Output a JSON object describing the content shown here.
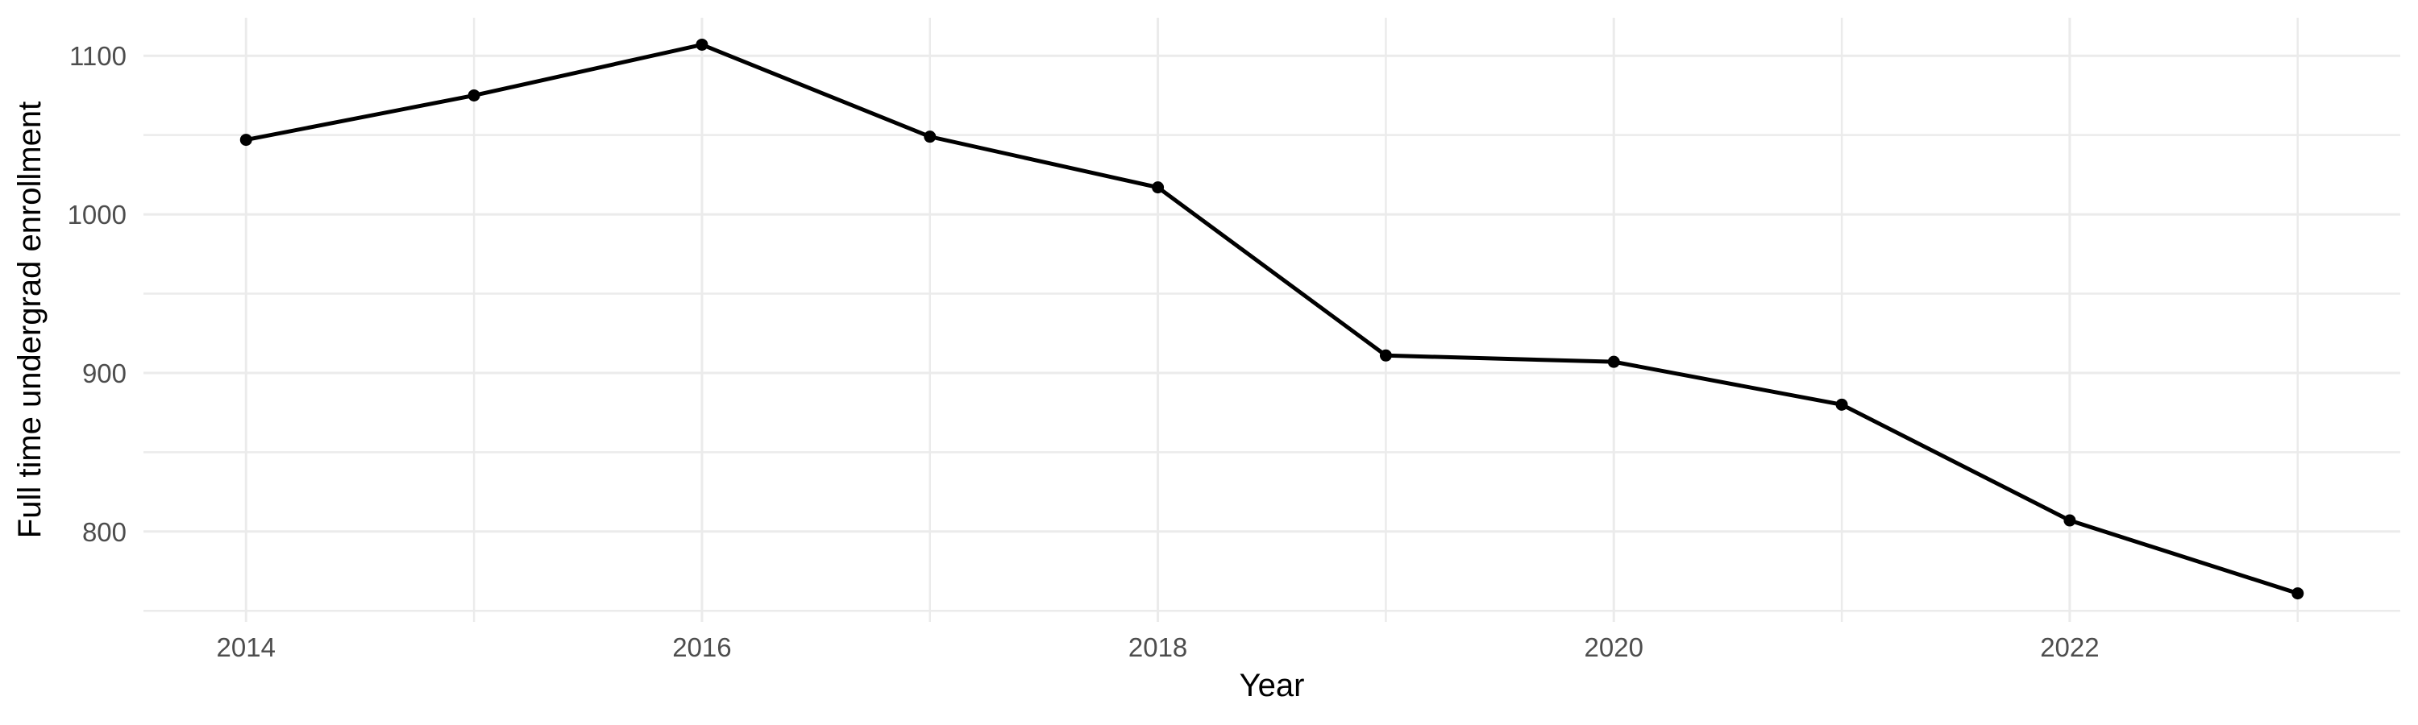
{
  "chart_data": {
    "type": "line",
    "title": "",
    "xlabel": "Year",
    "ylabel": "Full time undergrad enrollment",
    "x": [
      2014,
      2015,
      2016,
      2017,
      2018,
      2019,
      2020,
      2021,
      2022,
      2023
    ],
    "values": [
      1047,
      1075,
      1107,
      1049,
      1017,
      911,
      907,
      880,
      807,
      761
    ],
    "series_name": "Full time undergrad enrollment",
    "x_ticks": [
      2014,
      2016,
      2018,
      2020,
      2022
    ],
    "x_tick_labels": [
      "2014",
      "2016",
      "2018",
      "2020",
      "2022"
    ],
    "x_minor_gridlines": [
      2015,
      2017,
      2019,
      2021,
      2023
    ],
    "y_ticks": [
      800,
      900,
      1000,
      1100
    ],
    "y_tick_labels": [
      "800",
      "900",
      "1000",
      "1100"
    ],
    "y_minor_gridlines": [
      750,
      850,
      950,
      1050
    ],
    "xlim": [
      2013.55,
      2023.45
    ],
    "ylim": [
      743,
      1124
    ],
    "grid": "on",
    "legend": "none",
    "style": {
      "background": "#ffffff",
      "line_color": "#000000",
      "point_color": "#000000",
      "grid_major_color": "#ebebeb",
      "grid_minor_color": "#ebebeb",
      "tick_label_color": "#4d4d4d",
      "axis_title_color": "#000000"
    }
  }
}
